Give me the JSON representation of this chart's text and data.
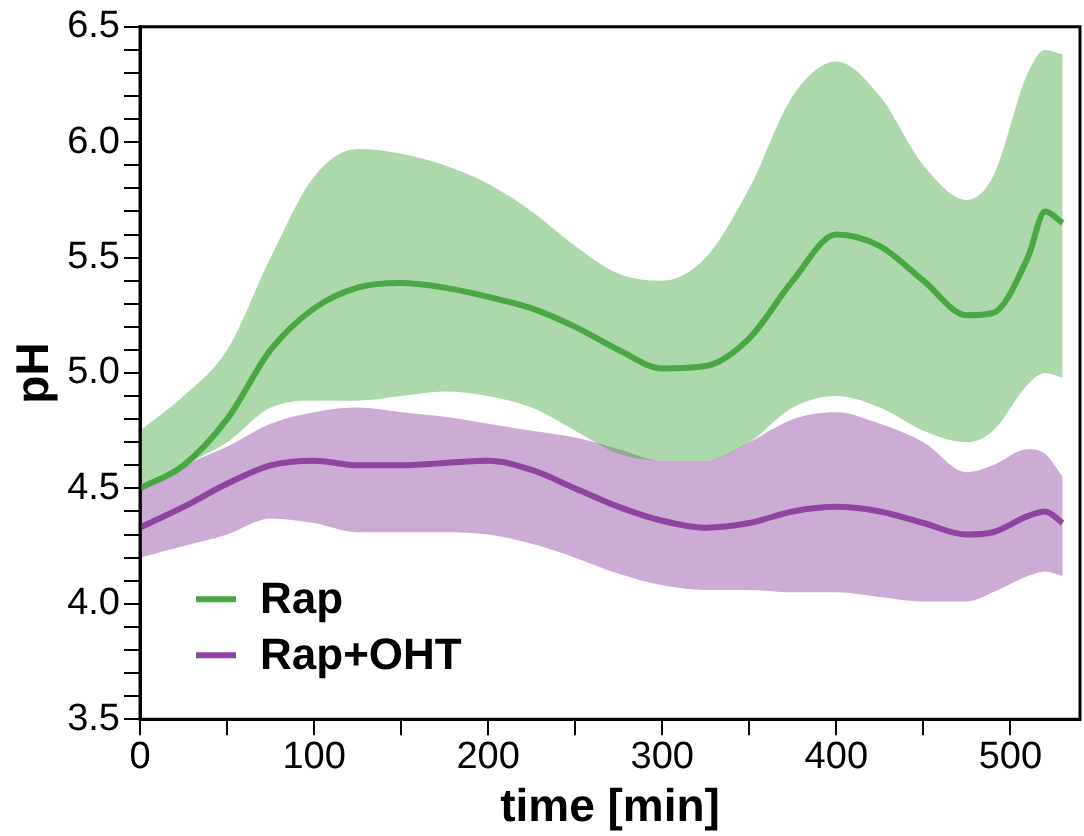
{
  "chart_data": {
    "type": "line",
    "xlabel": "time [min]",
    "ylabel": "pH",
    "xlim": [
      0,
      540
    ],
    "ylim": [
      3.5,
      6.5
    ],
    "xticks": [
      0,
      {
        "value": 50,
        "label": null
      },
      100,
      {
        "value": 150,
        "label": null
      },
      200,
      {
        "value": 250,
        "label": null
      },
      300,
      {
        "value": 350,
        "label": null
      },
      400,
      {
        "value": 450,
        "label": null
      },
      500
    ],
    "yticks": [
      3.5,
      {
        "value": 3.6,
        "label": null
      },
      {
        "value": 3.7,
        "label": null
      },
      {
        "value": 3.8,
        "label": null
      },
      {
        "value": 3.9,
        "label": null
      },
      {
        "value": 4,
        "label": "4.0"
      },
      {
        "value": 4.1,
        "label": null
      },
      {
        "value": 4.2,
        "label": null
      },
      {
        "value": 4.3,
        "label": null
      },
      {
        "value": 4.4,
        "label": null
      },
      4.5,
      {
        "value": 4.6,
        "label": null
      },
      {
        "value": 4.7,
        "label": null
      },
      {
        "value": 4.8,
        "label": null
      },
      {
        "value": 4.9,
        "label": null
      },
      {
        "value": 5,
        "label": "5.0"
      },
      {
        "value": 5.1,
        "label": null
      },
      {
        "value": 5.2,
        "label": null
      },
      {
        "value": 5.3,
        "label": null
      },
      {
        "value": 5.4,
        "label": null
      },
      5.5,
      {
        "value": 5.6,
        "label": null
      },
      {
        "value": 5.7,
        "label": null
      },
      {
        "value": 5.8,
        "label": null
      },
      {
        "value": 5.9,
        "label": null
      },
      {
        "value": 6,
        "label": "6.0"
      },
      {
        "value": 6.1,
        "label": null
      },
      {
        "value": 6.2,
        "label": null
      },
      {
        "value": 6.3,
        "label": null
      },
      {
        "value": 6.4,
        "label": null
      },
      6.5
    ],
    "x": [
      0,
      25,
      50,
      75,
      100,
      125,
      150,
      175,
      200,
      225,
      250,
      275,
      300,
      325,
      350,
      375,
      400,
      425,
      450,
      475,
      490,
      510,
      520,
      530
    ],
    "legend": "bottom left",
    "grid": false,
    "marker": "none",
    "line_style": "solid",
    "series": [
      {
        "name": "Rap",
        "color": "#4aa844",
        "values": [
          4.5,
          4.6,
          4.8,
          5.1,
          5.28,
          5.37,
          5.39,
          5.37,
          5.33,
          5.28,
          5.2,
          5.1,
          5.02,
          5.03,
          5.15,
          5.4,
          5.6,
          5.55,
          5.4,
          5.25,
          5.26,
          5.5,
          5.7,
          5.65
        ],
        "upper": [
          4.75,
          4.9,
          5.1,
          5.5,
          5.85,
          5.97,
          5.95,
          5.9,
          5.82,
          5.7,
          5.55,
          5.43,
          5.4,
          5.5,
          5.8,
          6.2,
          6.35,
          6.2,
          5.9,
          5.75,
          5.85,
          6.3,
          6.4,
          6.38
        ],
        "lower": [
          4.5,
          4.6,
          4.7,
          4.85,
          4.88,
          4.88,
          4.9,
          4.92,
          4.9,
          4.85,
          4.75,
          4.65,
          4.62,
          4.62,
          4.7,
          4.85,
          4.9,
          4.85,
          4.75,
          4.7,
          4.75,
          4.95,
          5.0,
          4.98
        ]
      },
      {
        "name": "Rap+OHT",
        "color": "#8e44a0",
        "values": [
          4.33,
          4.42,
          4.52,
          4.6,
          4.62,
          4.6,
          4.6,
          4.61,
          4.62,
          4.58,
          4.5,
          4.42,
          4.36,
          4.33,
          4.35,
          4.4,
          4.42,
          4.4,
          4.35,
          4.3,
          4.31,
          4.38,
          4.4,
          4.35
        ],
        "upper": [
          4.5,
          4.6,
          4.68,
          4.78,
          4.83,
          4.85,
          4.83,
          4.81,
          4.78,
          4.75,
          4.72,
          4.67,
          4.62,
          4.62,
          4.7,
          4.8,
          4.83,
          4.78,
          4.7,
          4.57,
          4.6,
          4.67,
          4.65,
          4.55
        ],
        "lower": [
          4.2,
          4.25,
          4.3,
          4.37,
          4.35,
          4.31,
          4.31,
          4.31,
          4.3,
          4.26,
          4.2,
          4.13,
          4.08,
          4.06,
          4.06,
          4.05,
          4.05,
          4.03,
          4.01,
          4.01,
          4.05,
          4.12,
          4.14,
          4.12
        ]
      }
    ]
  }
}
